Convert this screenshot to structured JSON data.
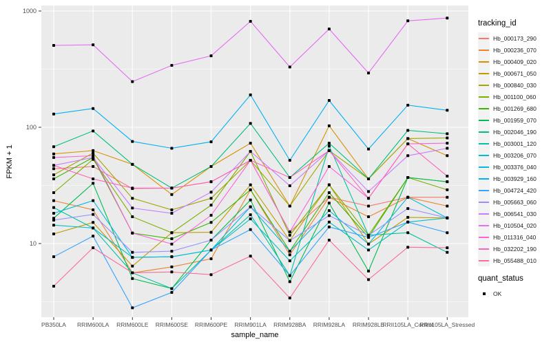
{
  "chart_data": {
    "type": "line",
    "title": "",
    "xlabel": "sample_name",
    "ylabel": "FPKM + 1",
    "y_scale": "log10",
    "ylim": [
      2.3,
      1050
    ],
    "y_ticks": [
      1000,
      100,
      10
    ],
    "y_tick_labels": [
      "1000",
      "100",
      "10"
    ],
    "y_minor_ticks": [
      316.2,
      31.62,
      3.162
    ],
    "grid": "white major/minor gridlines on gray panel",
    "legend_position": "right",
    "point_marker": "small black square (quant_status OK)",
    "categories": [
      "PB350LA",
      "RRIM600LA",
      "RRIM600LE",
      "RRIM600SE",
      "RRIM600PE",
      "RRIM901LA",
      "RRIM928BA",
      "RRIM928LA",
      "RRIM928LE",
      "RRII105LA_Control",
      "RRII105LA_Stressed"
    ],
    "series": [
      {
        "name": "Hb_000173_290",
        "color": "#F8766D",
        "values": [
          44,
          46,
          29.7,
          30,
          34,
          52,
          12.6,
          25,
          21,
          25,
          25
        ]
      },
      {
        "name": "Hb_000236_070",
        "color": "#EA8331",
        "values": [
          23.4,
          19.5,
          5.6,
          6.3,
          7.4,
          29,
          8,
          25,
          17,
          25,
          21
        ]
      },
      {
        "name": "Hb_000409_020",
        "color": "#D89000",
        "values": [
          59,
          63,
          48,
          26.4,
          46,
          73,
          21,
          103,
          36,
          80,
          57
        ]
      },
      {
        "name": "Hb_000671_050",
        "color": "#C09B00",
        "values": [
          12.1,
          15.2,
          6.4,
          12.4,
          12.5,
          32,
          10.6,
          32,
          9.9,
          16.8,
          16.6
        ]
      },
      {
        "name": "Hb_000840_030",
        "color": "#A3A500",
        "values": [
          39,
          60,
          24.5,
          19.5,
          24.5,
          52,
          21,
          63,
          36,
          80,
          81
        ]
      },
      {
        "name": "Hb_001100_060",
        "color": "#7CAE00",
        "values": [
          27.4,
          53,
          17,
          12.4,
          21.4,
          62,
          11.8,
          32,
          11.8,
          37,
          29
        ]
      },
      {
        "name": "Hb_001269_680",
        "color": "#39B600",
        "values": [
          36,
          55,
          12.3,
          11,
          15.2,
          29,
          8.6,
          27.4,
          11.3,
          37,
          34
        ]
      },
      {
        "name": "Hb_001959_070",
        "color": "#00BB4E",
        "values": [
          16.5,
          33,
          5,
          4.1,
          10.7,
          23.7,
          4.7,
          22.3,
          5.8,
          37,
          34
        ]
      },
      {
        "name": "Hb_002046_190",
        "color": "#00BF7D",
        "values": [
          68,
          93,
          48,
          30,
          46,
          108,
          37,
          73,
          36,
          94,
          88
        ]
      },
      {
        "name": "Hb_003001_120",
        "color": "#00C1A3",
        "values": [
          20.4,
          13.6,
          5.6,
          4.1,
          8.8,
          17.7,
          5.3,
          69,
          11.8,
          12.4,
          8.4
        ]
      },
      {
        "name": "Hb_003206_070",
        "color": "#00BFC4",
        "values": [
          14.4,
          13.6,
          7.6,
          7.7,
          8.8,
          16.3,
          7.1,
          15.3,
          8.8,
          15.3,
          16.6
        ]
      },
      {
        "name": "Hb_003376_040",
        "color": "#00BAE0",
        "values": [
          18.2,
          23.4,
          7.6,
          7.7,
          8.8,
          20.7,
          8.6,
          19.2,
          9.9,
          25,
          16.6
        ]
      },
      {
        "name": "Hb_003929_160",
        "color": "#00B0F6",
        "values": [
          130,
          145,
          75.5,
          66,
          75,
          190,
          52,
          170,
          65,
          155,
          140
        ]
      },
      {
        "name": "Hb_004724_420",
        "color": "#35A2FF",
        "values": [
          7.7,
          11.6,
          2.8,
          3.8,
          8.8,
          13.2,
          5.3,
          13.9,
          11.3,
          15.3,
          12.4
        ]
      },
      {
        "name": "Hb_005663_060",
        "color": "#9590FF",
        "values": [
          15.9,
          17.8,
          8.4,
          8.6,
          10.7,
          20.7,
          10.6,
          17.4,
          11.8,
          20,
          16.6
        ]
      },
      {
        "name": "Hb_006541_030",
        "color": "#C77CFF",
        "values": [
          47,
          55,
          20.2,
          18.2,
          27.7,
          62,
          31.4,
          63,
          28,
          57,
          66
        ]
      },
      {
        "name": "Hb_010504_020",
        "color": "#E76BF3",
        "values": [
          506,
          512,
          247,
          341,
          412,
          815,
          330,
          700,
          293,
          823,
          870
        ]
      },
      {
        "name": "Hb_011316_040",
        "color": "#FA62DB",
        "values": [
          55,
          57,
          12.3,
          9.9,
          17.5,
          52,
          12.6,
          46,
          24.5,
          72,
          73
        ]
      },
      {
        "name": "Hb_032202_190",
        "color": "#FF62BC",
        "values": [
          47,
          36,
          30,
          30,
          34,
          52,
          37,
          63,
          24.5,
          72,
          38
        ]
      },
      {
        "name": "Hb_055488_010",
        "color": "#FF6A98",
        "values": [
          4.3,
          9.2,
          5.6,
          5.7,
          5.4,
          7.8,
          3.4,
          10.7,
          4.9,
          9.3,
          9.2
        ]
      }
    ]
  },
  "axes": {
    "x_title": "sample_name",
    "y_title": "FPKM + 1"
  },
  "legend": {
    "tracking_title": "tracking_id",
    "quant_title": "quant_status",
    "quant_items": [
      {
        "label": "OK"
      }
    ]
  },
  "colors": {
    "panel_bg": "#EBEBEB",
    "grid": "#FFFFFF",
    "tick_text": "#4D4D4D",
    "tick_mark": "#333333",
    "point": "#000000",
    "legend_key_bg": "#F2F2F2"
  }
}
